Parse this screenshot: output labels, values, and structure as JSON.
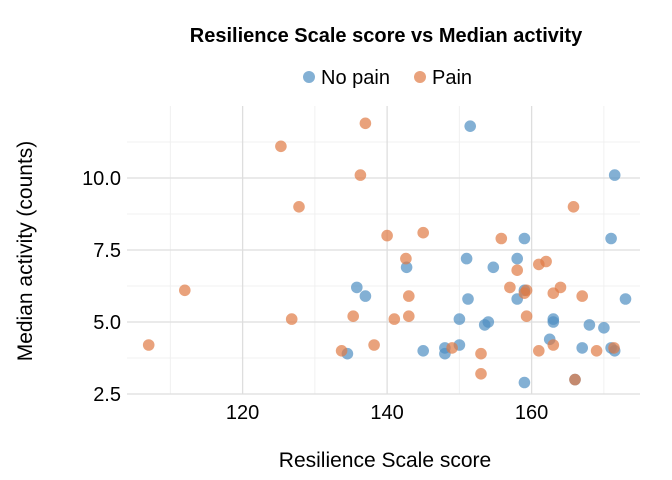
{
  "chart_data": {
    "type": "scatter",
    "title": "Resilience Scale score vs Median activity",
    "xlabel": "Resilience Scale score",
    "ylabel": "Median activity (counts)",
    "xlim": [
      104,
      175
    ],
    "ylim": [
      2.5,
      12.5
    ],
    "x_ticks": [
      120,
      140,
      160
    ],
    "y_ticks": [
      2.5,
      5.0,
      7.5,
      10.0
    ],
    "y_tick_labels": [
      "2.5",
      "5.0",
      "7.5",
      "10.0"
    ],
    "grid": true,
    "legend_position": "top",
    "series": [
      {
        "name": "No pain",
        "color": "#4f8ec2",
        "points": [
          [
            151.5,
            11.8
          ],
          [
            171.5,
            10.1
          ],
          [
            151,
            7.2
          ],
          [
            154.7,
            6.9
          ],
          [
            142.7,
            6.9
          ],
          [
            158,
            7.2
          ],
          [
            159,
            7.9
          ],
          [
            171,
            7.9
          ],
          [
            135.8,
            6.2
          ],
          [
            137,
            5.9
          ],
          [
            151.2,
            5.8
          ],
          [
            173,
            5.8
          ],
          [
            158,
            5.8
          ],
          [
            159,
            6.1
          ],
          [
            150,
            5.1
          ],
          [
            154,
            5.0
          ],
          [
            153.5,
            4.9
          ],
          [
            163,
            5.1
          ],
          [
            163,
            5.0
          ],
          [
            168,
            4.9
          ],
          [
            170,
            4.8
          ],
          [
            162.5,
            4.4
          ],
          [
            148,
            4.1
          ],
          [
            150,
            4.2
          ],
          [
            134.5,
            3.9
          ],
          [
            145,
            4.0
          ],
          [
            148,
            3.9
          ],
          [
            167,
            4.1
          ],
          [
            171,
            4.1
          ],
          [
            171.5,
            4.0
          ],
          [
            159,
            2.9
          ],
          [
            166,
            3.0
          ]
        ]
      },
      {
        "name": "Pain",
        "color": "#e07a45",
        "points": [
          [
            137,
            11.9
          ],
          [
            125.3,
            11.1
          ],
          [
            136.3,
            10.1
          ],
          [
            127.8,
            9.0
          ],
          [
            165.8,
            9.0
          ],
          [
            140,
            8.0
          ],
          [
            145,
            8.1
          ],
          [
            155.8,
            7.9
          ],
          [
            142.6,
            7.2
          ],
          [
            161,
            7.0
          ],
          [
            162,
            7.1
          ],
          [
            158,
            6.8
          ],
          [
            112,
            6.1
          ],
          [
            157,
            6.2
          ],
          [
            159,
            6.0
          ],
          [
            159.3,
            6.1
          ],
          [
            164,
            6.2
          ],
          [
            163,
            6.0
          ],
          [
            167,
            5.9
          ],
          [
            143,
            5.9
          ],
          [
            126.8,
            5.1
          ],
          [
            135.3,
            5.2
          ],
          [
            141,
            5.1
          ],
          [
            143,
            5.2
          ],
          [
            159.3,
            5.2
          ],
          [
            107,
            4.2
          ],
          [
            138.2,
            4.2
          ],
          [
            133.7,
            4.0
          ],
          [
            149,
            4.1
          ],
          [
            153,
            3.9
          ],
          [
            161,
            4.0
          ],
          [
            163,
            4.2
          ],
          [
            169,
            4.0
          ],
          [
            171.4,
            4.1
          ],
          [
            153,
            3.2
          ],
          [
            166,
            3.0
          ]
        ]
      }
    ]
  }
}
